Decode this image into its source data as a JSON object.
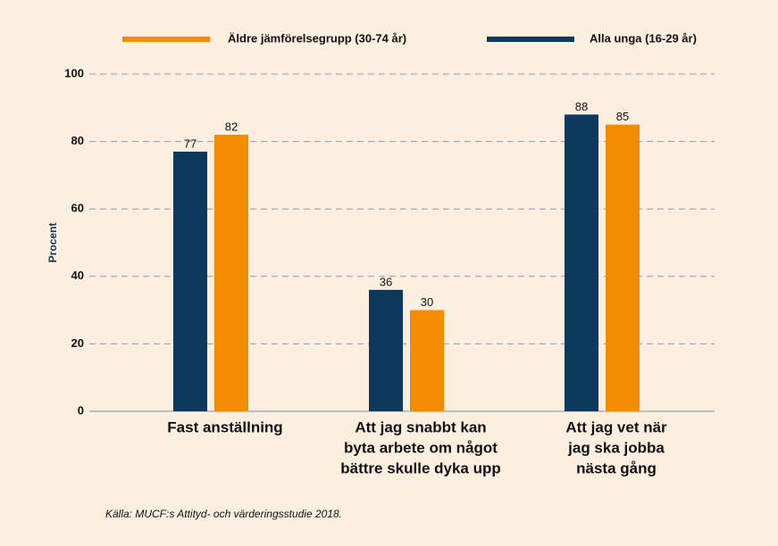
{
  "chart_data": {
    "type": "bar",
    "ylabel": "Procent",
    "categories": [
      [
        "Fast anställning"
      ],
      [
        "Att jag snabbt kan",
        "byta arbete om något",
        "bättre skulle dyka upp"
      ],
      [
        "Att jag vet när",
        "jag ska jobba",
        "nästa gång"
      ]
    ],
    "series": [
      {
        "name": "Äldre jämförelsegrupp (30-74 år)",
        "color": "#f28c00",
        "values": [
          82,
          30,
          85
        ]
      },
      {
        "name": "Alla unga (16-29 år)",
        "color": "#0d3a5c",
        "values": [
          77,
          36,
          88
        ]
      }
    ],
    "ylim": [
      0,
      100
    ],
    "yticks": [
      0,
      20,
      40,
      60,
      80,
      100
    ],
    "grid": true,
    "source": "Källa: MUCF:s Attityd- och värderingsstudie 2018."
  }
}
